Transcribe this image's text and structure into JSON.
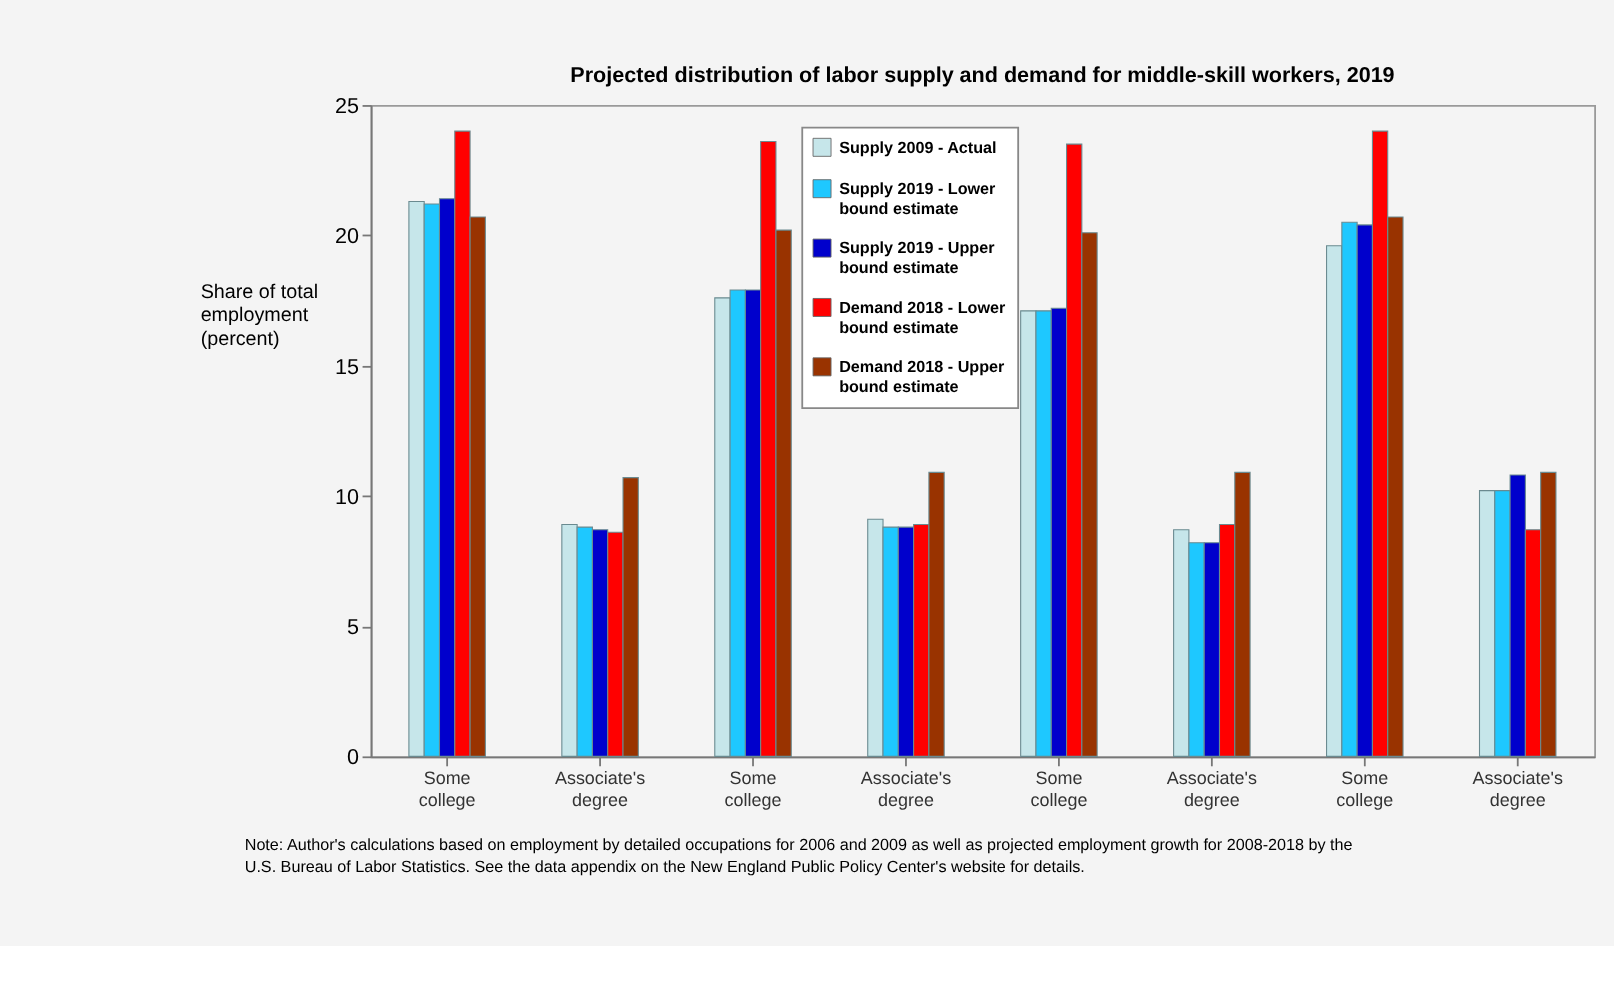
{
  "chart_data": {
    "type": "bar",
    "title": "Projected distribution of labor supply and demand for middle-skill workers, 2019",
    "ylabel": "Share of total employment (percent)",
    "categories": [
      "Some college",
      "Associate's degree",
      "Some college",
      "Associate's degree",
      "Some college",
      "Associate's degree",
      "Some college",
      "Associate's degree"
    ],
    "series": [
      {
        "name": "Supply 2009 - Actual",
        "color": "#c6e6ea",
        "values": [
          21.3,
          8.9,
          17.6,
          9.1,
          17.1,
          8.7,
          19.6,
          10.2
        ]
      },
      {
        "name": "Supply 2019 - Lower bound estimate",
        "color": "#1ec8ff",
        "values": [
          21.2,
          8.8,
          17.9,
          8.8,
          17.1,
          8.2,
          20.5,
          10.2
        ]
      },
      {
        "name": "Supply 2019 - Upper bound estimate",
        "color": "#0000cc",
        "values": [
          21.4,
          8.7,
          17.9,
          8.8,
          17.2,
          8.2,
          20.4,
          10.8
        ]
      },
      {
        "name": "Demand 2018 - Lower bound estimate",
        "color": "#ff0000",
        "values": [
          24.0,
          8.6,
          23.6,
          8.9,
          23.5,
          8.9,
          24.0,
          8.7
        ]
      },
      {
        "name": "Demand 2018 - Upper bound estimate",
        "color": "#993300",
        "values": [
          20.7,
          10.7,
          20.2,
          10.9,
          20.1,
          10.9,
          20.7,
          10.9
        ]
      }
    ],
    "ylim": [
      0,
      25
    ],
    "yticks": [
      0,
      5,
      10,
      15,
      20,
      25
    ],
    "grid": false,
    "legend": "top",
    "annotations": [
      "Note: Author's calculations based on employment by detailed occupations for 2006 and 2009 as well as projected employment growth for 2008-2018 by the U.S. Bureau of Labor Statistics. See the data appendix on the New England Public Policy Center's website for details."
    ]
  }
}
